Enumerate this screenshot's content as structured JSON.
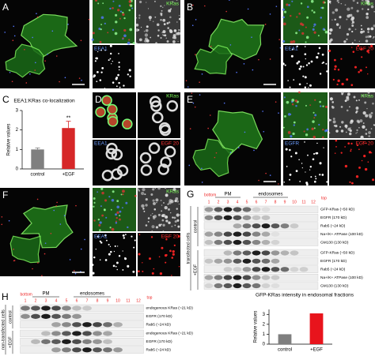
{
  "panel_letters": [
    "A",
    "B",
    "C",
    "D",
    "E",
    "F",
    "G",
    "H"
  ],
  "micrographs": {
    "A": [
      "KRas",
      "EEA1"
    ],
    "B": [
      "KRas",
      "EEA1",
      "EGF 20"
    ],
    "D": [
      "KRas",
      "EEA1",
      "EGF 20"
    ],
    "E": [
      "KRas",
      "EGFR",
      "EGF 20"
    ],
    "F": [
      "KRas",
      "EEA1",
      "EGF 20"
    ]
  },
  "blot_G": {
    "bottom": "bottom",
    "top": "top",
    "fractions": [
      1,
      2,
      3,
      4,
      5,
      6,
      7,
      8,
      9,
      10,
      11,
      12
    ],
    "regions": [
      "PM",
      "endosomes"
    ],
    "group": "transfected cells",
    "conditions": [
      "control",
      "+EGF"
    ],
    "bands": [
      "GFP-KRas (~50 kD)",
      "EGFR (170 kD)",
      "Rab5 (~24 kD)",
      "Na+/K+ ATPase (100 kD)",
      "GM130 (130 kD)"
    ]
  },
  "blot_H": {
    "bottom": "bottom",
    "top": "top",
    "fractions": [
      1,
      2,
      3,
      4,
      5,
      6,
      7,
      8,
      9,
      10,
      11,
      12
    ],
    "regions": [
      "PM",
      "endosomes"
    ],
    "group": "non-transfected cells",
    "conditions": [
      "control",
      "+EGF"
    ],
    "bands": [
      "endogenous KRas (~21 kD)",
      "EGFR (170 kD)",
      "Rab5 (~24 kD)"
    ]
  },
  "chart_data": [
    {
      "type": "bar",
      "title": "EEA1:KRas co-localization",
      "y_label": "Relative values",
      "categories": [
        "control",
        "+EGF"
      ],
      "values": [
        1.0,
        2.1
      ],
      "errors": [
        0.08,
        0.35
      ],
      "annotation": "**",
      "colors": [
        "#7f7f7f",
        "#d62728"
      ],
      "ylim": [
        0,
        3
      ],
      "yticks": [
        0,
        1,
        2,
        3
      ]
    },
    {
      "type": "bar",
      "title": "GFP-KRas intensity in endosomal fractions",
      "y_label": "Relative values",
      "categories": [
        "control",
        "+EGF"
      ],
      "values": [
        1.0,
        3.1
      ],
      "colors": [
        "#7f7f7f",
        "#e8141c"
      ],
      "ylim": [
        0,
        3.5
      ],
      "yticks": [
        0,
        1,
        2,
        3
      ]
    }
  ]
}
